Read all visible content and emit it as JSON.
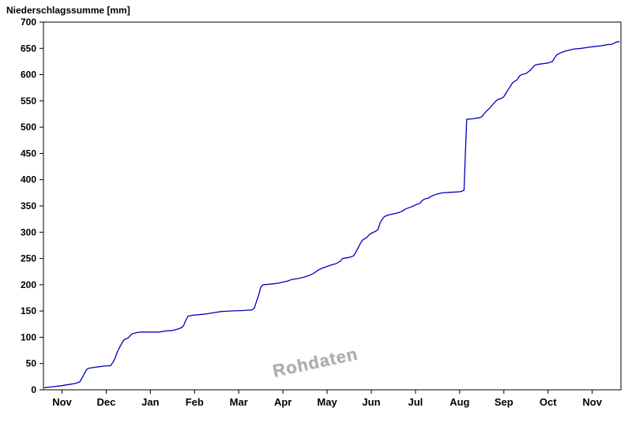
{
  "chart_data": {
    "type": "line",
    "title": "Niederschlagssumme [mm]",
    "watermark": "Rohdaten",
    "line_color": "#0000bb",
    "grid": false,
    "legend": "none",
    "ylim": [
      0,
      700
    ],
    "xlim": [
      -0.42,
      12.65
    ],
    "y_ticks": [
      0,
      50,
      100,
      150,
      200,
      250,
      300,
      350,
      400,
      450,
      500,
      550,
      600,
      650,
      700
    ],
    "x_tick_labels": [
      "Nov",
      "Dec",
      "Jan",
      "Feb",
      "Mar",
      "Apr",
      "May",
      "Jun",
      "Jul",
      "Aug",
      "Sep",
      "Oct",
      "Nov"
    ],
    "x_tick_positions": [
      0,
      1,
      2,
      3,
      4,
      5,
      6,
      7,
      8,
      9,
      10,
      11,
      12
    ],
    "points": [
      [
        -0.4,
        4
      ],
      [
        -0.2,
        6
      ],
      [
        0.0,
        8
      ],
      [
        0.15,
        10
      ],
      [
        0.3,
        12
      ],
      [
        0.4,
        15
      ],
      [
        0.45,
        22
      ],
      [
        0.5,
        30
      ],
      [
        0.55,
        38
      ],
      [
        0.6,
        41
      ],
      [
        0.75,
        43
      ],
      [
        0.95,
        45
      ],
      [
        1.1,
        46
      ],
      [
        1.15,
        52
      ],
      [
        1.2,
        60
      ],
      [
        1.25,
        72
      ],
      [
        1.3,
        80
      ],
      [
        1.35,
        88
      ],
      [
        1.4,
        95
      ],
      [
        1.5,
        99
      ],
      [
        1.55,
        104
      ],
      [
        1.6,
        107
      ],
      [
        1.7,
        109
      ],
      [
        1.8,
        110
      ],
      [
        2.2,
        110
      ],
      [
        2.35,
        112
      ],
      [
        2.5,
        113
      ],
      [
        2.6,
        115
      ],
      [
        2.7,
        118
      ],
      [
        2.75,
        122
      ],
      [
        2.8,
        132
      ],
      [
        2.85,
        140
      ],
      [
        2.95,
        142
      ],
      [
        3.1,
        143
      ],
      [
        3.3,
        145
      ],
      [
        3.45,
        147
      ],
      [
        3.6,
        149
      ],
      [
        3.8,
        150
      ],
      [
        4.1,
        151
      ],
      [
        4.3,
        152
      ],
      [
        4.35,
        155
      ],
      [
        4.4,
        168
      ],
      [
        4.45,
        180
      ],
      [
        4.5,
        196
      ],
      [
        4.55,
        200
      ],
      [
        4.7,
        201
      ],
      [
        4.9,
        203
      ],
      [
        5.0,
        205
      ],
      [
        5.1,
        207
      ],
      [
        5.2,
        210
      ],
      [
        5.35,
        212
      ],
      [
        5.5,
        215
      ],
      [
        5.6,
        218
      ],
      [
        5.7,
        222
      ],
      [
        5.8,
        228
      ],
      [
        5.9,
        232
      ],
      [
        6.0,
        235
      ],
      [
        6.1,
        238
      ],
      [
        6.2,
        240
      ],
      [
        6.3,
        245
      ],
      [
        6.35,
        250
      ],
      [
        6.5,
        252
      ],
      [
        6.6,
        255
      ],
      [
        6.65,
        262
      ],
      [
        6.7,
        270
      ],
      [
        6.75,
        278
      ],
      [
        6.8,
        285
      ],
      [
        6.9,
        290
      ],
      [
        6.95,
        295
      ],
      [
        7.0,
        298
      ],
      [
        7.05,
        300
      ],
      [
        7.1,
        302
      ],
      [
        7.15,
        305
      ],
      [
        7.2,
        318
      ],
      [
        7.25,
        325
      ],
      [
        7.3,
        330
      ],
      [
        7.4,
        333
      ],
      [
        7.5,
        335
      ],
      [
        7.6,
        337
      ],
      [
        7.7,
        340
      ],
      [
        7.75,
        343
      ],
      [
        7.8,
        345
      ],
      [
        7.9,
        348
      ],
      [
        7.95,
        350
      ],
      [
        8.0,
        352
      ],
      [
        8.1,
        355
      ],
      [
        8.15,
        360
      ],
      [
        8.2,
        363
      ],
      [
        8.3,
        365
      ],
      [
        8.35,
        368
      ],
      [
        8.4,
        370
      ],
      [
        8.5,
        373
      ],
      [
        8.6,
        375
      ],
      [
        8.8,
        376
      ],
      [
        9.0,
        377
      ],
      [
        9.05,
        378
      ],
      [
        9.1,
        380
      ],
      [
        9.13,
        450
      ],
      [
        9.16,
        515
      ],
      [
        9.3,
        516
      ],
      [
        9.45,
        518
      ],
      [
        9.5,
        520
      ],
      [
        9.55,
        525
      ],
      [
        9.6,
        530
      ],
      [
        9.7,
        538
      ],
      [
        9.75,
        543
      ],
      [
        9.8,
        548
      ],
      [
        9.85,
        552
      ],
      [
        9.95,
        555
      ],
      [
        10.0,
        558
      ],
      [
        10.05,
        565
      ],
      [
        10.1,
        572
      ],
      [
        10.15,
        578
      ],
      [
        10.2,
        585
      ],
      [
        10.3,
        590
      ],
      [
        10.35,
        597
      ],
      [
        10.4,
        600
      ],
      [
        10.5,
        602
      ],
      [
        10.6,
        608
      ],
      [
        10.65,
        613
      ],
      [
        10.7,
        618
      ],
      [
        10.8,
        620
      ],
      [
        11.0,
        622
      ],
      [
        11.1,
        625
      ],
      [
        11.15,
        632
      ],
      [
        11.2,
        638
      ],
      [
        11.3,
        642
      ],
      [
        11.4,
        645
      ],
      [
        11.5,
        647
      ],
      [
        11.6,
        649
      ],
      [
        11.75,
        650
      ],
      [
        11.9,
        652
      ],
      [
        12.0,
        653
      ],
      [
        12.2,
        655
      ],
      [
        12.35,
        657
      ],
      [
        12.45,
        658
      ],
      [
        12.55,
        662
      ],
      [
        12.62,
        663
      ]
    ]
  }
}
